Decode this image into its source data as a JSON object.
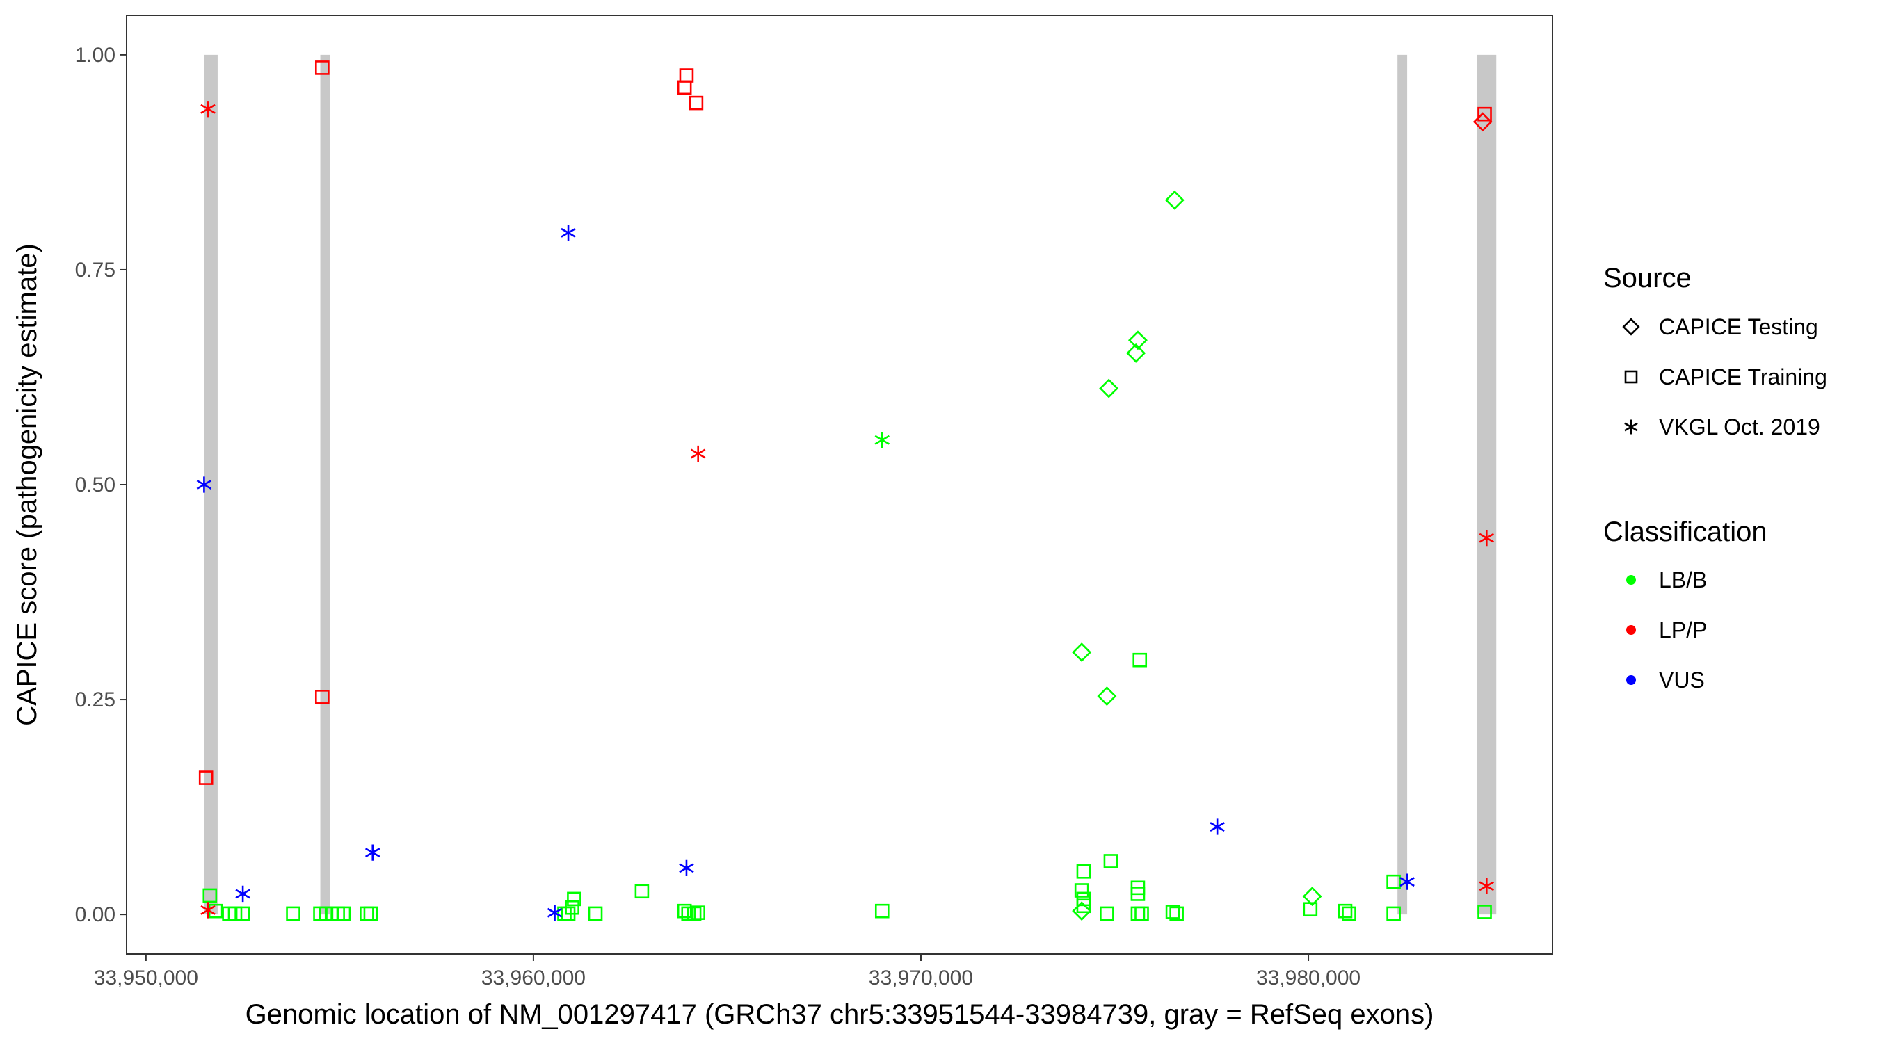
{
  "chart_data": {
    "type": "scatter",
    "xlabel": "Genomic location of NM_001297417 (GRCh37 chr5:33951544-33984739, gray = RefSeq exons)",
    "ylabel": "CAPICE score (pathogenicity estimate)",
    "xlim": [
      33949500,
      33986300
    ],
    "ylim": [
      -0.046,
      1.046
    ],
    "x_ticks": [
      33950000,
      33960000,
      33970000,
      33980000
    ],
    "x_tick_labels": [
      "33,950,000",
      "33,960,000",
      "33,970,000",
      "33,980,000"
    ],
    "y_ticks": [
      0,
      0.25,
      0.5,
      0.75,
      1
    ],
    "y_tick_labels": [
      "0.00",
      "0.25",
      "0.50",
      "0.75",
      "1.00"
    ],
    "grid": false,
    "legend_position": "right",
    "exons": [
      {
        "start": 33951500,
        "end": 33951850
      },
      {
        "start": 33954500,
        "end": 33954750
      },
      {
        "start": 33982300,
        "end": 33982550
      },
      {
        "start": 33984350,
        "end": 33984850
      }
    ],
    "legends": [
      {
        "title": "Source",
        "items": [
          {
            "label": "CAPICE Testing",
            "shape": "diamond"
          },
          {
            "label": "CAPICE Training",
            "shape": "square"
          },
          {
            "label": "VKGL Oct. 2019",
            "shape": "star"
          }
        ]
      },
      {
        "title": "Classification",
        "items": [
          {
            "label": "LB/B",
            "color": "#00ff00"
          },
          {
            "label": "LP/P",
            "color": "#ff0000"
          },
          {
            "label": "VUS",
            "color": "#0000ff"
          }
        ]
      }
    ],
    "series": [
      {
        "source": "CAPICE Training",
        "classification": "LB/B",
        "shape": "square",
        "color": "#00ff00",
        "points": [
          [
            33951650,
            0.022
          ],
          [
            33951800,
            0.004
          ],
          [
            33952150,
            0.001
          ],
          [
            33952300,
            0.001
          ],
          [
            33952500,
            0.001
          ],
          [
            33953800,
            0.001
          ],
          [
            33954500,
            0.001
          ],
          [
            33954650,
            0.001
          ],
          [
            33954800,
            0.001
          ],
          [
            33954950,
            0.001
          ],
          [
            33955100,
            0.001
          ],
          [
            33955700,
            0.001
          ],
          [
            33955800,
            0.001
          ],
          [
            33960800,
            0.001
          ],
          [
            33960900,
            0.001
          ],
          [
            33961000,
            0.008
          ],
          [
            33961050,
            0.018
          ],
          [
            33961600,
            0.001
          ],
          [
            33962800,
            0.027
          ],
          [
            33963900,
            0.004
          ],
          [
            33964000,
            0.001
          ],
          [
            33964150,
            0.001
          ],
          [
            33964250,
            0.002
          ],
          [
            33969000,
            0.004
          ],
          [
            33974200,
            0.05
          ],
          [
            33974150,
            0.028
          ],
          [
            33974200,
            0.018
          ],
          [
            33974200,
            0.01
          ],
          [
            33974800,
            0.001
          ],
          [
            33974900,
            0.062
          ],
          [
            33975600,
            0.031
          ],
          [
            33975600,
            0.024
          ],
          [
            33975650,
            0.296
          ],
          [
            33975600,
            0.001
          ],
          [
            33975700,
            0.001
          ],
          [
            33976500,
            0.003
          ],
          [
            33976600,
            0.001
          ],
          [
            33980050,
            0.006
          ],
          [
            33980950,
            0.004
          ],
          [
            33981050,
            0.001
          ],
          [
            33982200,
            0.001
          ],
          [
            33982200,
            0.038
          ],
          [
            33984550,
            0.003
          ]
        ]
      },
      {
        "source": "CAPICE Training",
        "classification": "LP/P",
        "shape": "square",
        "color": "#ff0000",
        "points": [
          [
            33951550,
            0.159
          ],
          [
            33954550,
            0.985
          ],
          [
            33954550,
            0.253
          ],
          [
            33963950,
            0.976
          ],
          [
            33963900,
            0.962
          ],
          [
            33964200,
            0.944
          ],
          [
            33984550,
            0.931
          ]
        ]
      },
      {
        "source": "CAPICE Testing",
        "classification": "LB/B",
        "shape": "diamond",
        "color": "#00ff00",
        "points": [
          [
            33976550,
            0.831
          ],
          [
            33975600,
            0.668
          ],
          [
            33975550,
            0.653
          ],
          [
            33974850,
            0.612
          ],
          [
            33974150,
            0.305
          ],
          [
            33974800,
            0.254
          ],
          [
            33974150,
            0.004
          ],
          [
            33980100,
            0.021
          ]
        ]
      },
      {
        "source": "CAPICE Testing",
        "classification": "LP/P",
        "shape": "diamond",
        "color": "#ff0000",
        "points": [
          [
            33984500,
            0.922
          ]
        ]
      },
      {
        "source": "VKGL Oct. 2019",
        "classification": "LB/B",
        "shape": "star",
        "color": "#00ff00",
        "points": [
          [
            33969000,
            0.552
          ]
        ]
      },
      {
        "source": "VKGL Oct. 2019",
        "classification": "LP/P",
        "shape": "star",
        "color": "#ff0000",
        "points": [
          [
            33951600,
            0.937
          ],
          [
            33951600,
            0.005
          ],
          [
            33964250,
            0.536
          ],
          [
            33984600,
            0.438
          ],
          [
            33984600,
            0.033
          ]
        ]
      },
      {
        "source": "VKGL Oct. 2019",
        "classification": "VUS",
        "shape": "star",
        "color": "#0000ff",
        "points": [
          [
            33951500,
            0.5
          ],
          [
            33952500,
            0.024
          ],
          [
            33955850,
            0.072
          ],
          [
            33960900,
            0.793
          ],
          [
            33960550,
            0.002
          ],
          [
            33963950,
            0.054
          ],
          [
            33977650,
            0.102
          ],
          [
            33982550,
            0.038
          ]
        ]
      }
    ]
  }
}
